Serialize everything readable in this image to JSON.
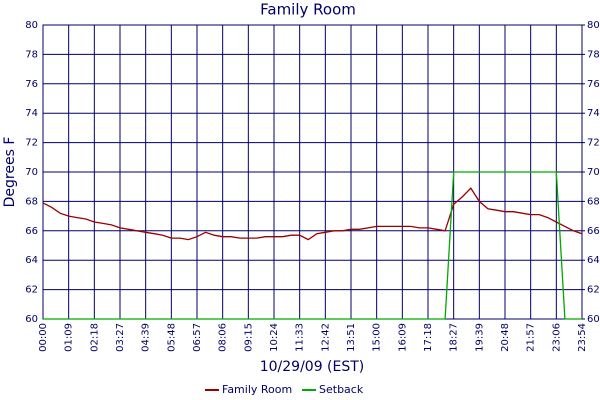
{
  "chart_data": {
    "type": "line",
    "title": "Family Room",
    "x_label": "10/29/09 (EST)",
    "y_label": "Degrees F",
    "categories": [
      "00:00",
      null,
      null,
      "01:09",
      null,
      null,
      "02:18",
      null,
      null,
      "03:27",
      null,
      null,
      "04:39",
      null,
      null,
      "05:48",
      null,
      null,
      "06:57",
      null,
      null,
      "08:06",
      null,
      null,
      "09:15",
      null,
      null,
      "10:24",
      null,
      null,
      "11:33",
      null,
      null,
      "12:42",
      null,
      null,
      "13:51",
      null,
      null,
      "15:00",
      null,
      null,
      "16:09",
      null,
      null,
      "17:18",
      null,
      null,
      "18:27",
      null,
      null,
      "19:39",
      null,
      null,
      "20:48",
      null,
      null,
      "21:57",
      null,
      null,
      "23:06",
      null,
      null,
      "23:54"
    ],
    "series": [
      {
        "name": "Family Room",
        "color": "#990000",
        "values": [
          67.9,
          67.6,
          67.2,
          67.0,
          66.9,
          66.8,
          66.6,
          66.5,
          66.4,
          66.2,
          66.1,
          66.0,
          65.9,
          65.8,
          65.7,
          65.5,
          65.5,
          65.4,
          65.6,
          65.9,
          65.7,
          65.6,
          65.6,
          65.5,
          65.5,
          65.5,
          65.6,
          65.6,
          65.6,
          65.7,
          65.7,
          65.4,
          65.8,
          65.9,
          66.0,
          66.0,
          66.1,
          66.1,
          66.2,
          66.3,
          66.3,
          66.3,
          66.3,
          66.3,
          66.2,
          66.2,
          66.1,
          66.0,
          67.8,
          68.3,
          68.9,
          68.0,
          67.5,
          67.4,
          67.3,
          67.3,
          67.2,
          67.1,
          67.1,
          66.9,
          66.6,
          66.3,
          66.0,
          65.8
        ]
      },
      {
        "name": "Setback",
        "color": "#00aa00",
        "values": [
          60,
          60,
          60,
          60,
          60,
          60,
          60,
          60,
          60,
          60,
          60,
          60,
          60,
          60,
          60,
          60,
          60,
          60,
          60,
          60,
          60,
          60,
          60,
          60,
          60,
          60,
          60,
          60,
          60,
          60,
          60,
          60,
          60,
          60,
          60,
          60,
          60,
          60,
          60,
          60,
          60,
          60,
          60,
          60,
          60,
          60,
          60,
          60,
          70,
          70,
          70,
          70,
          70,
          70,
          70,
          70,
          70,
          70,
          70,
          70,
          70,
          60,
          60,
          60
        ]
      }
    ],
    "ylim": [
      60,
      80
    ],
    "yticks": [
      60,
      62,
      64,
      66,
      68,
      70,
      72,
      74,
      76,
      78,
      80
    ],
    "y2lim": [
      60,
      80
    ],
    "y2ticks": [
      60,
      62,
      64,
      66,
      68,
      70,
      72,
      74,
      76,
      78,
      80
    ],
    "grid": true
  }
}
